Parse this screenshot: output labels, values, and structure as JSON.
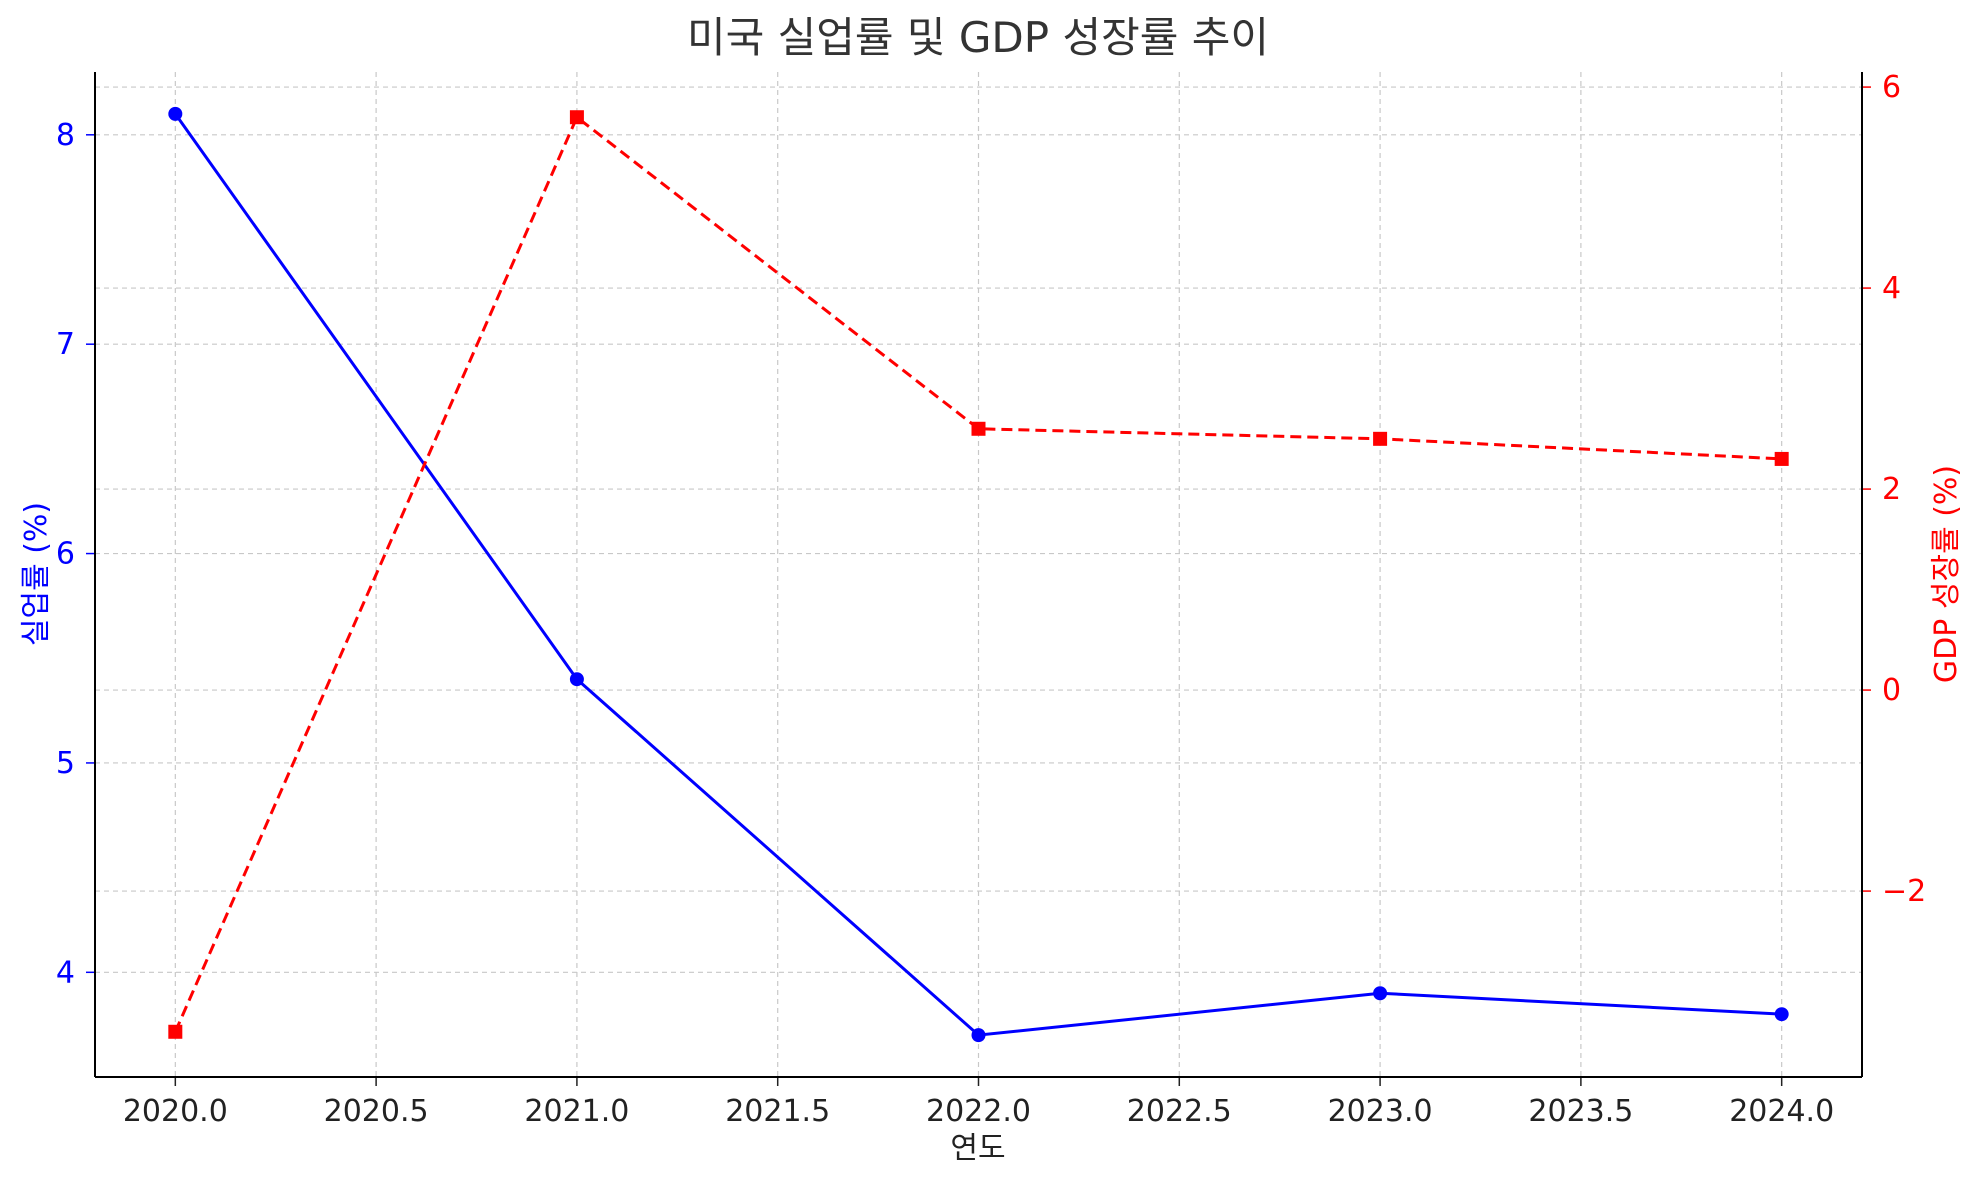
{
  "chart_data": {
    "type": "line",
    "title": "미국 실업률 및 GDP 성장률 추이",
    "xlabel": "연도",
    "ylabel_left": "실업률 (%)",
    "ylabel_right": "GDP 성장률 (%)",
    "x": [
      2020,
      2021,
      2022,
      2023,
      2024
    ],
    "xlim": [
      2019.8,
      2024.2
    ],
    "xticks": [
      "2020.0",
      "2020.5",
      "2021.0",
      "2021.5",
      "2022.0",
      "2022.5",
      "2023.0",
      "2023.5",
      "2024.0"
    ],
    "grid": true,
    "series": [
      {
        "axis": "left",
        "color": "#0000ff",
        "linestyle": "solid",
        "marker": "circle",
        "values": [
          8.1,
          5.4,
          3.7,
          3.9,
          3.8
        ],
        "ylim": [
          3.5,
          8.3
        ],
        "yticks": [
          "4",
          "5",
          "6",
          "7",
          "8"
        ]
      },
      {
        "axis": "right",
        "color": "#ff0000",
        "linestyle": "dashed",
        "marker": "square",
        "values": [
          -3.4,
          5.7,
          2.6,
          2.5,
          2.3
        ],
        "ylim": [
          -3.85,
          6.15
        ],
        "yticks": [
          "−2",
          "0",
          "2",
          "4",
          "6"
        ]
      }
    ]
  }
}
